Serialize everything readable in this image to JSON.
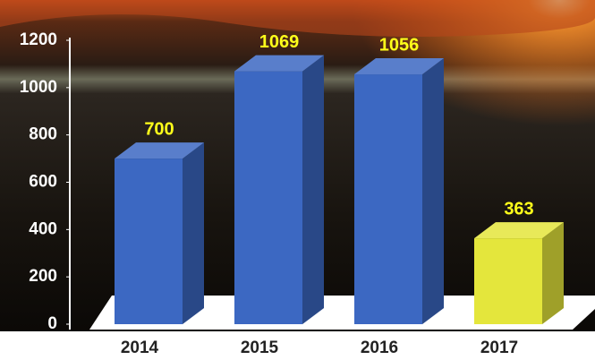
{
  "chart_data": {
    "type": "bar3d",
    "categories": [
      "2014",
      "2015",
      "2016",
      "2017"
    ],
    "values": [
      700,
      1069,
      1056,
      363
    ],
    "colors": [
      "#3c68c2",
      "#3c68c2",
      "#3c68c2",
      "#e4e63c"
    ],
    "value_label_color": "#ffff1a",
    "ylim": [
      0,
      1200
    ],
    "yticks": [
      0,
      200,
      400,
      600,
      800,
      1000,
      1200
    ]
  }
}
